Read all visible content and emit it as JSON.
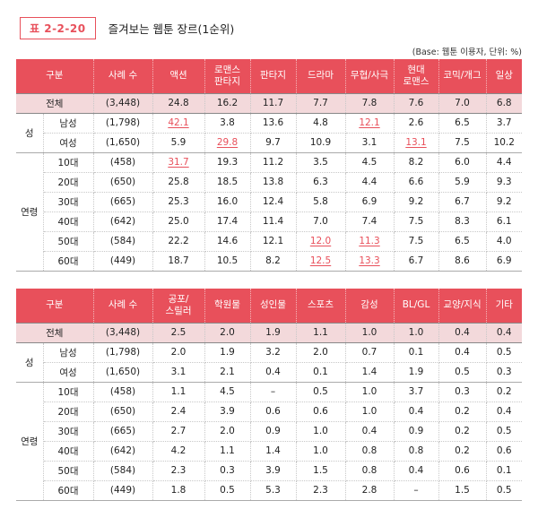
{
  "header": {
    "tag": "표 2-2-20",
    "title": "즐겨보는 웹툰 장르(1순위)",
    "base_note": "(Base: 웹툰 이용자, 단위: %)"
  },
  "table1": {
    "columns": [
      "구분",
      "사례 수",
      "액션",
      "로맨스\n판타지",
      "판타지",
      "드라마",
      "무협/사극",
      "현대\n로맨스",
      "코믹/개그",
      "일상"
    ],
    "total": {
      "label": "전체",
      "n": "(3,448)",
      "values": [
        "24.8",
        "16.2",
        "11.7",
        "7.7",
        "7.8",
        "7.6",
        "7.0",
        "6.8"
      ]
    },
    "groups": [
      {
        "name": "성",
        "rows": [
          {
            "label": "남성",
            "n": "(1,798)",
            "values": [
              "42.1",
              "3.8",
              "13.6",
              "4.8",
              "12.1",
              "2.6",
              "6.5",
              "3.7"
            ],
            "hl": [
              0,
              4
            ]
          },
          {
            "label": "여성",
            "n": "(1,650)",
            "values": [
              "5.9",
              "29.8",
              "9.7",
              "10.9",
              "3.1",
              "13.1",
              "7.5",
              "10.2"
            ],
            "hl": [
              1,
              5
            ]
          }
        ]
      },
      {
        "name": "연령",
        "rows": [
          {
            "label": "10대",
            "n": "(458)",
            "values": [
              "31.7",
              "19.3",
              "11.2",
              "3.5",
              "4.5",
              "8.2",
              "6.0",
              "4.4"
            ],
            "hl": [
              0
            ]
          },
          {
            "label": "20대",
            "n": "(650)",
            "values": [
              "25.8",
              "18.5",
              "13.8",
              "6.3",
              "4.4",
              "6.6",
              "5.9",
              "9.3"
            ],
            "hl": []
          },
          {
            "label": "30대",
            "n": "(665)",
            "values": [
              "25.3",
              "16.0",
              "12.4",
              "5.8",
              "6.9",
              "9.2",
              "6.7",
              "9.2"
            ],
            "hl": []
          },
          {
            "label": "40대",
            "n": "(642)",
            "values": [
              "25.0",
              "17.4",
              "11.4",
              "7.0",
              "7.4",
              "7.5",
              "8.3",
              "6.1"
            ],
            "hl": []
          },
          {
            "label": "50대",
            "n": "(584)",
            "values": [
              "22.2",
              "14.6",
              "12.1",
              "12.0",
              "11.3",
              "7.5",
              "6.5",
              "4.0"
            ],
            "hl": [
              3,
              4
            ]
          },
          {
            "label": "60대",
            "n": "(449)",
            "values": [
              "18.7",
              "10.5",
              "8.2",
              "12.5",
              "13.3",
              "6.7",
              "8.6",
              "6.9"
            ],
            "hl": [
              3,
              4
            ]
          }
        ]
      }
    ]
  },
  "table2": {
    "columns": [
      "구분",
      "사례 수",
      "공포/\n스릴러",
      "학원물",
      "성인물",
      "스포츠",
      "감성",
      "BL/GL",
      "교양/지식",
      "기타"
    ],
    "total": {
      "label": "전체",
      "n": "(3,448)",
      "values": [
        "2.5",
        "2.0",
        "1.9",
        "1.1",
        "1.0",
        "1.0",
        "0.4",
        "0.4"
      ]
    },
    "groups": [
      {
        "name": "성",
        "rows": [
          {
            "label": "남성",
            "n": "(1,798)",
            "values": [
              "2.0",
              "1.9",
              "3.2",
              "2.0",
              "0.7",
              "0.1",
              "0.4",
              "0.5"
            ],
            "hl": []
          },
          {
            "label": "여성",
            "n": "(1,650)",
            "values": [
              "3.1",
              "2.1",
              "0.4",
              "0.1",
              "1.4",
              "1.9",
              "0.5",
              "0.3"
            ],
            "hl": []
          }
        ]
      },
      {
        "name": "연령",
        "rows": [
          {
            "label": "10대",
            "n": "(458)",
            "values": [
              "1.1",
              "4.5",
              "–",
              "0.5",
              "1.0",
              "3.7",
              "0.3",
              "0.2"
            ],
            "hl": []
          },
          {
            "label": "20대",
            "n": "(650)",
            "values": [
              "2.4",
              "3.9",
              "0.6",
              "0.6",
              "1.0",
              "0.4",
              "0.2",
              "0.4"
            ],
            "hl": []
          },
          {
            "label": "30대",
            "n": "(665)",
            "values": [
              "2.7",
              "2.0",
              "0.9",
              "1.0",
              "0.4",
              "0.9",
              "0.2",
              "0.5"
            ],
            "hl": []
          },
          {
            "label": "40대",
            "n": "(642)",
            "values": [
              "4.2",
              "1.1",
              "1.4",
              "1.0",
              "0.8",
              "0.8",
              "0.2",
              "0.6"
            ],
            "hl": []
          },
          {
            "label": "50대",
            "n": "(584)",
            "values": [
              "2.3",
              "0.3",
              "3.9",
              "1.5",
              "0.8",
              "0.4",
              "0.6",
              "0.1"
            ],
            "hl": []
          },
          {
            "label": "60대",
            "n": "(449)",
            "values": [
              "1.8",
              "0.5",
              "5.3",
              "2.3",
              "2.8",
              "–",
              "1.5",
              "0.5"
            ],
            "hl": []
          }
        ]
      }
    ]
  }
}
